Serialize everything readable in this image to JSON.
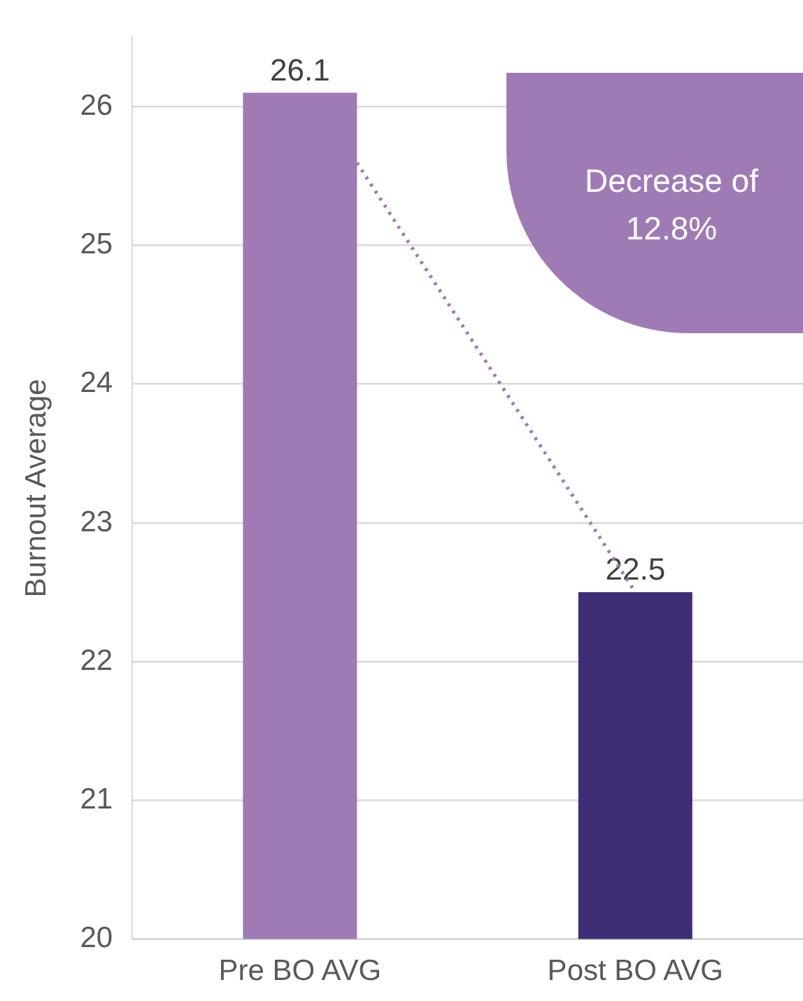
{
  "chart_data": {
    "type": "bar",
    "ylabel": "Burnout Average",
    "categories": [
      "Pre BO AVG",
      "Post BO AVG"
    ],
    "series": [
      {
        "colors": [
          "#9e7bb5",
          "#3f2d76"
        ],
        "values": [
          26.1,
          22.5
        ]
      }
    ],
    "ylim": [
      20,
      26.5
    ],
    "yticks": [
      20,
      21,
      22,
      23,
      24,
      25,
      26
    ],
    "grid": "y",
    "legend": false,
    "data_labels": true,
    "annotations": [
      "Decrease of 12.8%"
    ]
  }
}
